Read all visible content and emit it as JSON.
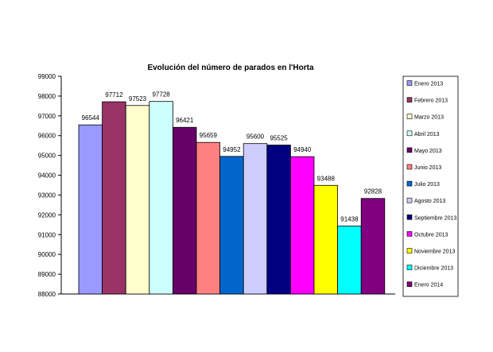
{
  "chart_data": {
    "type": "bar",
    "title": "Evolución del número de parados en l'Horta",
    "xlabel": "",
    "ylabel": "",
    "ylim": [
      88000,
      99000
    ],
    "yticks": [
      88000,
      89000,
      90000,
      91000,
      92000,
      93000,
      94000,
      95000,
      96000,
      97000,
      98000,
      99000
    ],
    "grid": false,
    "legend_position": "right",
    "series": [
      {
        "name": "Enero 2013",
        "value": 96544,
        "color": "#9999ff"
      },
      {
        "name": "Febrero 2013",
        "value": 97712,
        "color": "#993366"
      },
      {
        "name": "Marzo 2013",
        "value": 97523,
        "color": "#ffffcc"
      },
      {
        "name": "Abril 2013",
        "value": 97728,
        "color": "#ccffff"
      },
      {
        "name": "Mayo 2013",
        "value": 96421,
        "color": "#660066"
      },
      {
        "name": "Junio 2013",
        "value": 95659,
        "color": "#ff8080"
      },
      {
        "name": "Julio 2013",
        "value": 94952,
        "color": "#0066cc"
      },
      {
        "name": "Agosto 2013",
        "value": 95600,
        "color": "#ccccff"
      },
      {
        "name": "Septiembre 2013",
        "value": 95525,
        "color": "#000080"
      },
      {
        "name": "Octubre 2013",
        "value": 94940,
        "color": "#ff00ff"
      },
      {
        "name": "Noviembre 2013",
        "value": 93488,
        "color": "#ffff00"
      },
      {
        "name": "Diciembre 2013",
        "value": 91438,
        "color": "#00ffff"
      },
      {
        "name": "Enero 2014",
        "value": 92828,
        "color": "#800080"
      }
    ]
  }
}
